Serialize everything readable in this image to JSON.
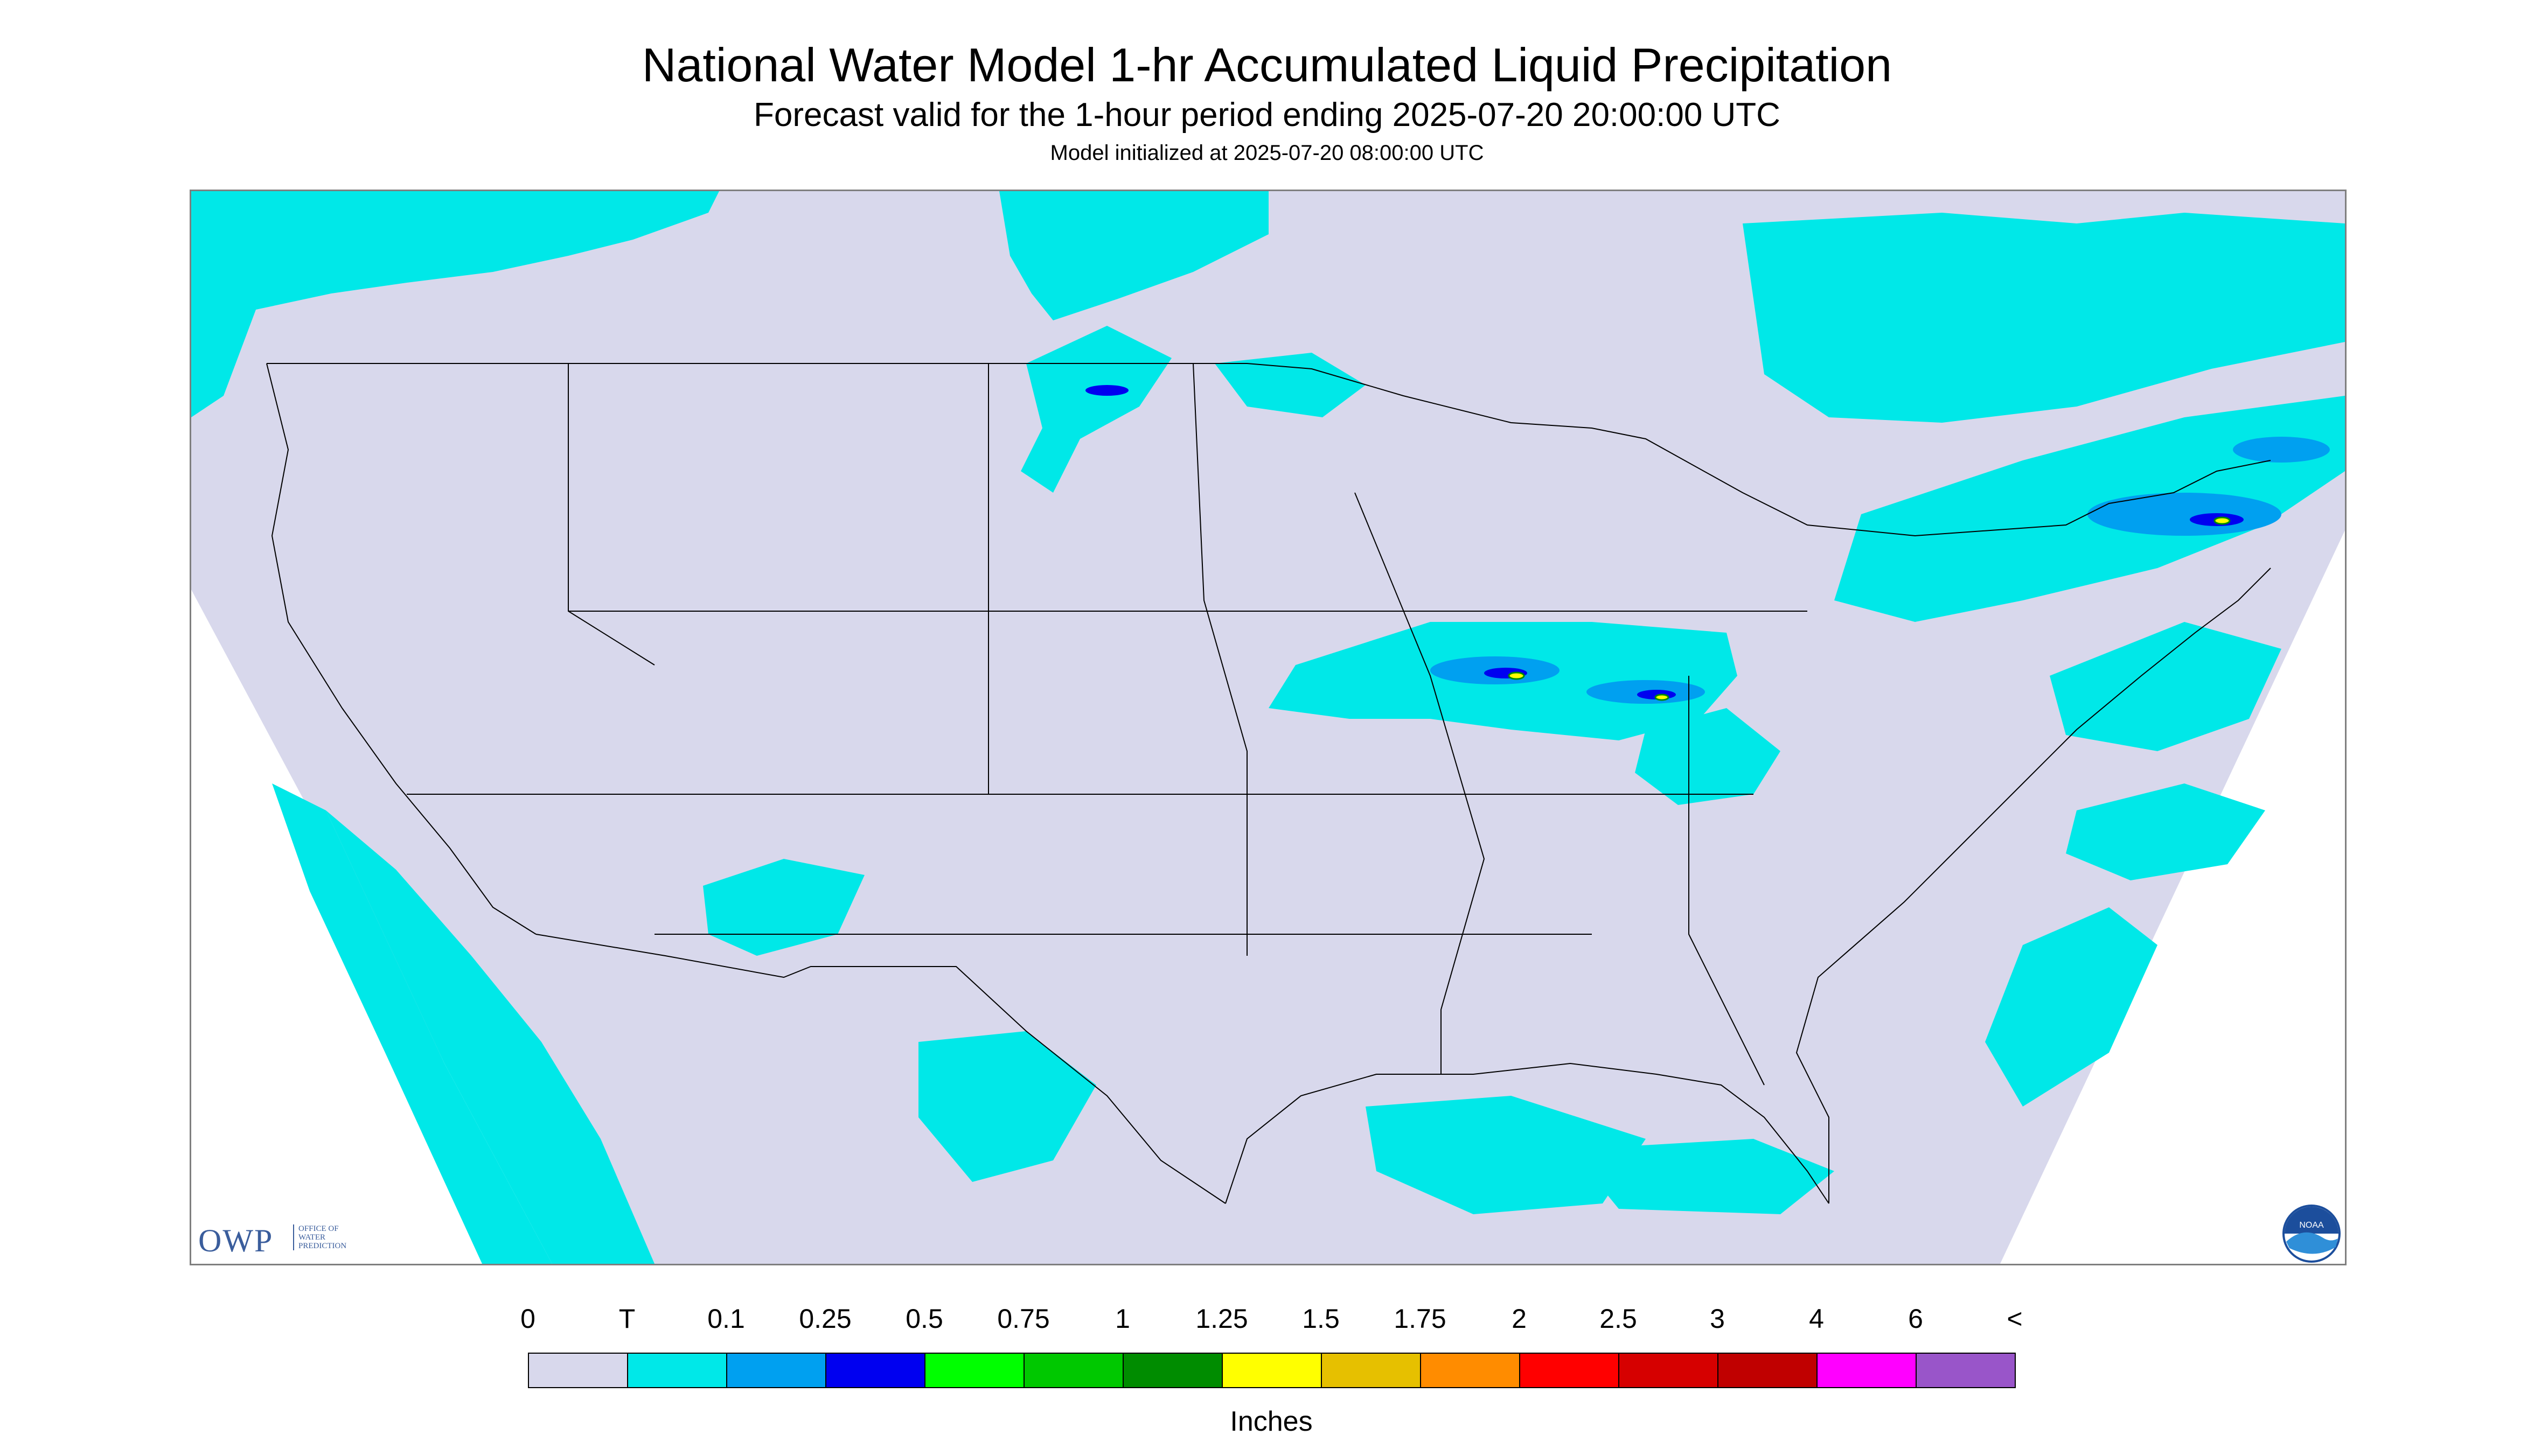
{
  "header": {
    "title": "National Water Model 1-hr Accumulated Liquid Precipitation",
    "subtitle": "Forecast valid for the 1-hour period ending 2025-07-20 20:00:00 UTC",
    "init_line": "Model initialized at 2025-07-20 08:00:00 UTC"
  },
  "logos": {
    "owp_mark": "OWP",
    "owp_text_1": "OFFICE OF",
    "owp_text_2": "WATER",
    "owp_text_3": "PREDICTION",
    "noaa_text": "NOAA"
  },
  "map": {
    "projection_fill": "#d8d8ec",
    "no_data_fill": "#ffffff",
    "boundary_color": "#000000"
  },
  "legend": {
    "ticks": [
      "0",
      "T",
      "0.1",
      "0.25",
      "0.5",
      "0.75",
      "1",
      "1.25",
      "1.5",
      "1.75",
      "2",
      "2.5",
      "3",
      "4",
      "6",
      "<"
    ],
    "colors": [
      "#d8d8ec",
      "#00e8e8",
      "#00a0f0",
      "#0000f0",
      "#00ff00",
      "#00c800",
      "#008c00",
      "#ffff00",
      "#e6c000",
      "#ff8c00",
      "#ff0000",
      "#d60000",
      "#c00000",
      "#ff00ff",
      "#9955c9"
    ],
    "unit_label": "Inches"
  }
}
